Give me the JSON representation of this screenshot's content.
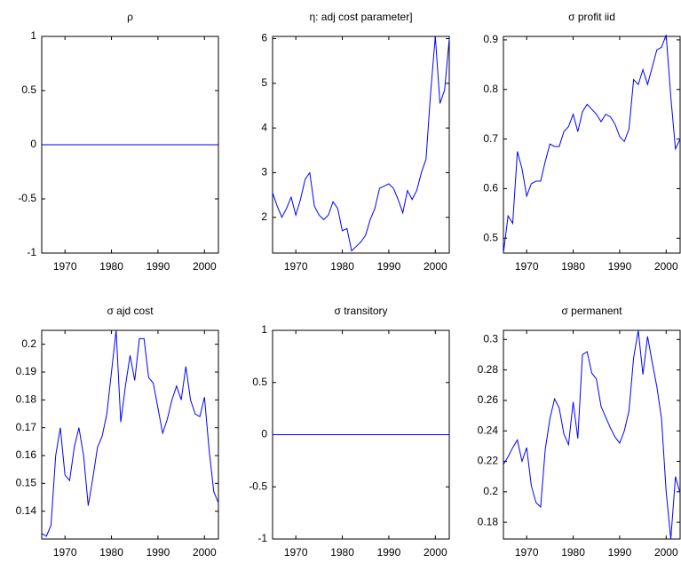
{
  "chart_data": [
    {
      "type": "line",
      "title": "ρ",
      "color": "#0000ff",
      "x": [
        1965,
        1966,
        1967,
        1968,
        1969,
        1970,
        1971,
        1972,
        1973,
        1974,
        1975,
        1976,
        1977,
        1978,
        1979,
        1980,
        1981,
        1982,
        1983,
        1984,
        1985,
        1986,
        1987,
        1988,
        1989,
        1990,
        1991,
        1992,
        1993,
        1994,
        1995,
        1996,
        1997,
        1998,
        1999,
        2000,
        2001,
        2002,
        2003
      ],
      "values": [
        0,
        0,
        0,
        0,
        0,
        0,
        0,
        0,
        0,
        0,
        0,
        0,
        0,
        0,
        0,
        0,
        0,
        0,
        0,
        0,
        0,
        0,
        0,
        0,
        0,
        0,
        0,
        0,
        0,
        0,
        0,
        0,
        0,
        0,
        0,
        0,
        0,
        0,
        0
      ],
      "xlim": [
        1965,
        2003
      ],
      "xticks": [
        1970,
        1980,
        1990,
        2000
      ],
      "ylim": [
        -1,
        1
      ],
      "yticks": [
        -1,
        -0.5,
        0,
        0.5,
        1
      ]
    },
    {
      "type": "line",
      "title": "η: adj cost parameter]",
      "color": "#0000ff",
      "x": [
        1965,
        1966,
        1967,
        1968,
        1969,
        1970,
        1971,
        1972,
        1973,
        1974,
        1975,
        1976,
        1977,
        1978,
        1979,
        1980,
        1981,
        1982,
        1983,
        1984,
        1985,
        1986,
        1987,
        1988,
        1989,
        1990,
        1991,
        1992,
        1993,
        1994,
        1995,
        1996,
        1997,
        1998,
        1999,
        2000,
        2001,
        2002,
        2003
      ],
      "values": [
        2.55,
        2.25,
        2.0,
        2.2,
        2.45,
        2.05,
        2.4,
        2.85,
        3.0,
        2.25,
        2.05,
        1.95,
        2.05,
        2.35,
        2.2,
        1.7,
        1.75,
        1.25,
        1.35,
        1.45,
        1.6,
        1.95,
        2.2,
        2.65,
        2.7,
        2.75,
        2.65,
        2.4,
        2.1,
        2.6,
        2.4,
        2.6,
        3.0,
        3.3,
        4.8,
        6.05,
        4.55,
        4.85,
        6.0
      ],
      "xlim": [
        1965,
        2003
      ],
      "xticks": [
        1970,
        1980,
        1990,
        2000
      ],
      "ylim": [
        1.2,
        6.05
      ],
      "yticks": [
        2,
        3,
        4,
        5,
        6
      ]
    },
    {
      "type": "line",
      "title": "σ profit iid",
      "color": "#0000ff",
      "x": [
        1965,
        1966,
        1967,
        1968,
        1969,
        1970,
        1971,
        1972,
        1973,
        1974,
        1975,
        1976,
        1977,
        1978,
        1979,
        1980,
        1981,
        1982,
        1983,
        1984,
        1985,
        1986,
        1987,
        1988,
        1989,
        1990,
        1991,
        1992,
        1993,
        1994,
        1995,
        1996,
        1997,
        1998,
        1999,
        2000,
        2001,
        2002,
        2003
      ],
      "values": [
        0.47,
        0.545,
        0.53,
        0.675,
        0.64,
        0.585,
        0.61,
        0.615,
        0.615,
        0.655,
        0.69,
        0.685,
        0.685,
        0.715,
        0.725,
        0.75,
        0.715,
        0.755,
        0.77,
        0.76,
        0.75,
        0.735,
        0.75,
        0.745,
        0.73,
        0.705,
        0.695,
        0.72,
        0.82,
        0.81,
        0.84,
        0.81,
        0.845,
        0.88,
        0.885,
        0.91,
        0.785,
        0.68,
        0.7
      ],
      "xlim": [
        1965,
        2003
      ],
      "xticks": [
        1970,
        1980,
        1990,
        2000
      ],
      "ylim": [
        0.47,
        0.907
      ],
      "yticks": [
        0.5,
        0.6,
        0.7,
        0.8,
        0.9
      ]
    },
    {
      "type": "line",
      "title": "σ ajd cost",
      "color": "#0000ff",
      "x": [
        1965,
        1966,
        1967,
        1968,
        1969,
        1970,
        1971,
        1972,
        1973,
        1974,
        1975,
        1976,
        1977,
        1978,
        1979,
        1980,
        1981,
        1982,
        1983,
        1984,
        1985,
        1986,
        1987,
        1988,
        1989,
        1990,
        1991,
        1992,
        1993,
        1994,
        1995,
        1996,
        1997,
        1998,
        1999,
        2000,
        2001,
        2002,
        2003
      ],
      "values": [
        0.132,
        0.131,
        0.135,
        0.16,
        0.17,
        0.153,
        0.151,
        0.163,
        0.17,
        0.16,
        0.142,
        0.152,
        0.163,
        0.167,
        0.175,
        0.19,
        0.205,
        0.172,
        0.185,
        0.196,
        0.187,
        0.202,
        0.202,
        0.188,
        0.186,
        0.177,
        0.168,
        0.173,
        0.18,
        0.185,
        0.18,
        0.192,
        0.18,
        0.175,
        0.174,
        0.181,
        0.162,
        0.147,
        0.143
      ],
      "xlim": [
        1965,
        2003
      ],
      "xticks": [
        1970,
        1980,
        1990,
        2000
      ],
      "ylim": [
        0.13,
        0.205
      ],
      "yticks": [
        0.14,
        0.15,
        0.16,
        0.17,
        0.18,
        0.19,
        0.2
      ]
    },
    {
      "type": "line",
      "title": "σ transitory",
      "color": "#0000ff",
      "x": [
        1965,
        1966,
        1967,
        1968,
        1969,
        1970,
        1971,
        1972,
        1973,
        1974,
        1975,
        1976,
        1977,
        1978,
        1979,
        1980,
        1981,
        1982,
        1983,
        1984,
        1985,
        1986,
        1987,
        1988,
        1989,
        1990,
        1991,
        1992,
        1993,
        1994,
        1995,
        1996,
        1997,
        1998,
        1999,
        2000,
        2001,
        2002,
        2003
      ],
      "values": [
        0,
        0,
        0,
        0,
        0,
        0,
        0,
        0,
        0,
        0,
        0,
        0,
        0,
        0,
        0,
        0,
        0,
        0,
        0,
        0,
        0,
        0,
        0,
        0,
        0,
        0,
        0,
        0,
        0,
        0,
        0,
        0,
        0,
        0,
        0,
        0,
        0,
        0,
        0
      ],
      "xlim": [
        1965,
        2003
      ],
      "xticks": [
        1970,
        1980,
        1990,
        2000
      ],
      "ylim": [
        -1,
        1
      ],
      "yticks": [
        -1,
        -0.5,
        0,
        0.5,
        1
      ]
    },
    {
      "type": "line",
      "title": "σ permanent",
      "color": "#0000ff",
      "x": [
        1965,
        1966,
        1967,
        1968,
        1969,
        1970,
        1971,
        1972,
        1973,
        1974,
        1975,
        1976,
        1977,
        1978,
        1979,
        1980,
        1981,
        1982,
        1983,
        1984,
        1985,
        1986,
        1987,
        1988,
        1989,
        1990,
        1991,
        1992,
        1993,
        1994,
        1995,
        1996,
        1997,
        1998,
        1999,
        2000,
        2001,
        2002,
        2003
      ],
      "values": [
        0.218,
        0.223,
        0.229,
        0.234,
        0.22,
        0.229,
        0.204,
        0.193,
        0.19,
        0.228,
        0.248,
        0.261,
        0.255,
        0.238,
        0.231,
        0.259,
        0.235,
        0.29,
        0.292,
        0.278,
        0.274,
        0.256,
        0.249,
        0.242,
        0.236,
        0.232,
        0.24,
        0.253,
        0.288,
        0.306,
        0.277,
        0.302,
        0.285,
        0.269,
        0.248,
        0.2,
        0.169,
        0.21,
        0.199
      ],
      "xlim": [
        1965,
        2003
      ],
      "xticks": [
        1970,
        1980,
        1990,
        2000
      ],
      "ylim": [
        0.169,
        0.306
      ],
      "yticks": [
        0.18,
        0.2,
        0.22,
        0.24,
        0.26,
        0.28,
        0.3
      ]
    }
  ]
}
